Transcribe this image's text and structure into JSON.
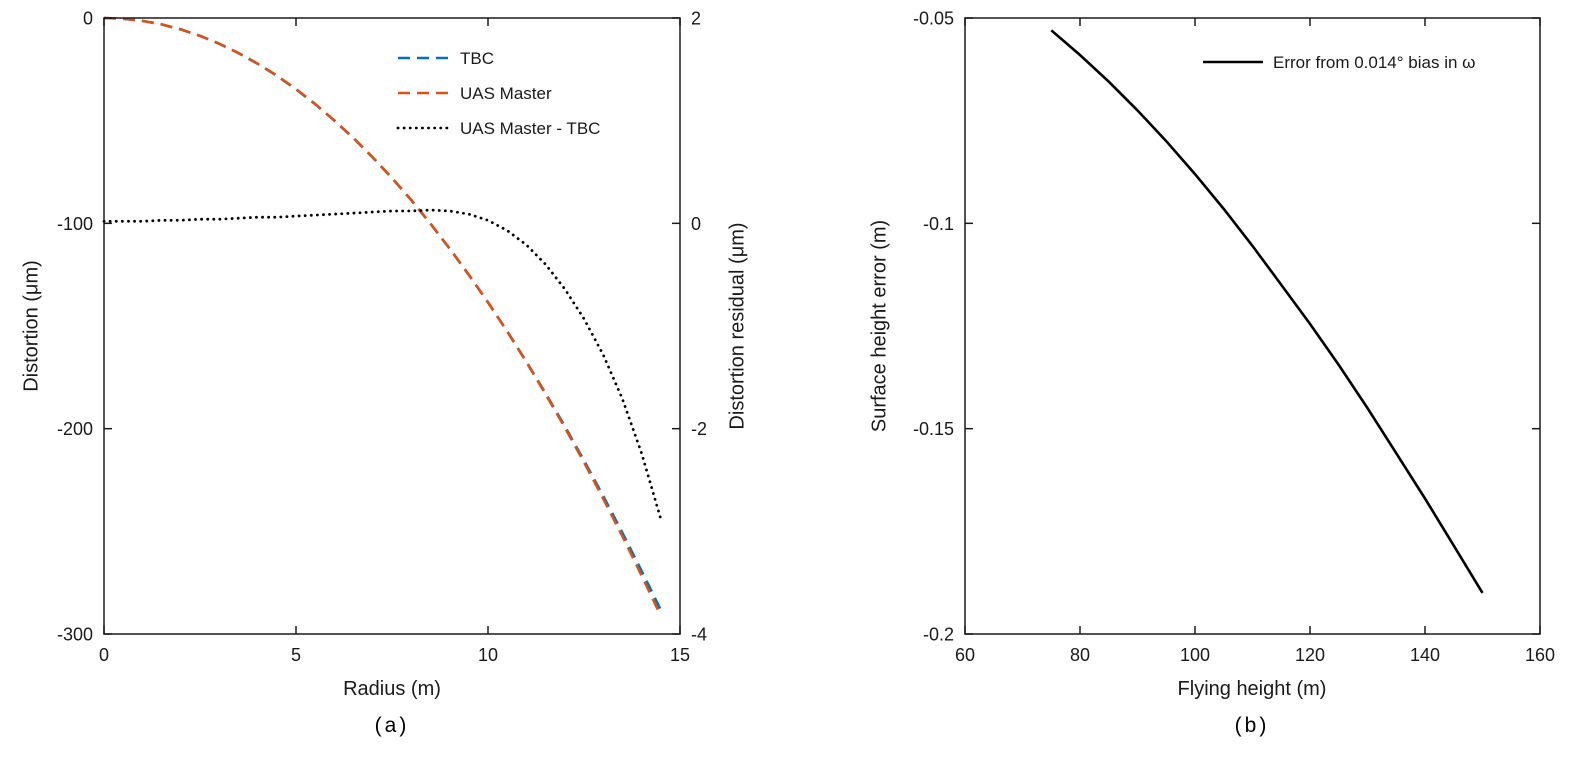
{
  "chart_data": [
    {
      "id": "a",
      "type": "line",
      "caption": "(a)",
      "xlabel": "Radius (m)",
      "ylabel_left": "Distortion (μm)",
      "ylabel_right": "Distortion residual (μm)",
      "xlim": [
        0,
        15
      ],
      "ylim_left": [
        -300,
        0
      ],
      "ylim_right": [
        -4,
        2
      ],
      "xticks": [
        0,
        5,
        10,
        15
      ],
      "yticks_left": [
        0,
        -100,
        -200,
        -300
      ],
      "yticks_right": [
        2,
        0,
        -2,
        -4
      ],
      "grid": false,
      "legend_position": "north-inside",
      "x": [
        0,
        0.5,
        1,
        1.5,
        2,
        2.5,
        3,
        3.5,
        4,
        4.5,
        5,
        5.5,
        6,
        6.5,
        7,
        7.5,
        8,
        8.5,
        9,
        9.5,
        10,
        10.5,
        11,
        11.5,
        12,
        12.5,
        13,
        13.5,
        14,
        14.5
      ],
      "series": [
        {
          "name": "TBC",
          "color": "#0072BD",
          "style": "dashed",
          "axis": "left",
          "y": [
            0,
            -0.4,
            -1.4,
            -3.1,
            -5.6,
            -8.7,
            -12.5,
            -17.1,
            -22.3,
            -28.1,
            -34.7,
            -42,
            -50,
            -58.6,
            -68,
            -78,
            -88.7,
            -100.2,
            -112.3,
            -125.1,
            -138.5,
            -152.6,
            -167.4,
            -182.8,
            -198.8,
            -215.5,
            -232.8,
            -250.7,
            -269.3,
            -288.3
          ]
        },
        {
          "name": "UAS Master",
          "color": "#D95319",
          "style": "dashed",
          "axis": "left",
          "y": [
            0,
            -0.3,
            -1.4,
            -3.1,
            -5.5,
            -8.7,
            -12.5,
            -17,
            -22.2,
            -28,
            -34.6,
            -41.9,
            -49.9,
            -58.5,
            -67.9,
            -77.9,
            -88.6,
            -100.1,
            -112.2,
            -125,
            -138.5,
            -152.7,
            -167.6,
            -183.2,
            -199.4,
            -216.4,
            -234.1,
            -252.4,
            -271.5,
            -291.2
          ]
        },
        {
          "name": "UAS Master - TBC",
          "color": "#000000",
          "style": "dotted",
          "axis": "right",
          "y": [
            0.02,
            0.02,
            0.02,
            0.03,
            0.03,
            0.04,
            0.04,
            0.05,
            0.06,
            0.06,
            0.07,
            0.08,
            0.09,
            0.1,
            0.11,
            0.12,
            0.12,
            0.13,
            0.12,
            0.09,
            0.03,
            -0.07,
            -0.21,
            -0.4,
            -0.64,
            -0.93,
            -1.28,
            -1.71,
            -2.24,
            -2.88
          ]
        }
      ]
    },
    {
      "id": "b",
      "type": "line",
      "caption": "(b)",
      "xlabel": "Flying height (m)",
      "ylabel": "Surface height error (m)",
      "xlim": [
        60,
        160
      ],
      "ylim": [
        -0.2,
        -0.05
      ],
      "xticks": [
        60,
        80,
        100,
        120,
        140,
        160
      ],
      "yticks": [
        -0.05,
        -0.1,
        -0.15,
        -0.2
      ],
      "grid": false,
      "legend_position": "northeast-inside",
      "x": [
        75,
        80,
        85,
        90,
        95,
        100,
        105,
        110,
        115,
        120,
        125,
        130,
        135,
        140,
        145,
        150
      ],
      "series": [
        {
          "name": "Error from 0.014° bias in ω",
          "color": "#000000",
          "style": "solid",
          "axis": "left",
          "y": [
            -0.053,
            -0.059,
            -0.0655,
            -0.0725,
            -0.08,
            -0.088,
            -0.0965,
            -0.1055,
            -0.115,
            -0.1245,
            -0.1345,
            -0.145,
            -0.156,
            -0.167,
            -0.1785,
            -0.19
          ]
        }
      ]
    }
  ],
  "colors": {
    "axis": "#1a1a1a",
    "matlab_blue": "#0072BD",
    "matlab_orange": "#D95319",
    "background": "#ffffff"
  }
}
